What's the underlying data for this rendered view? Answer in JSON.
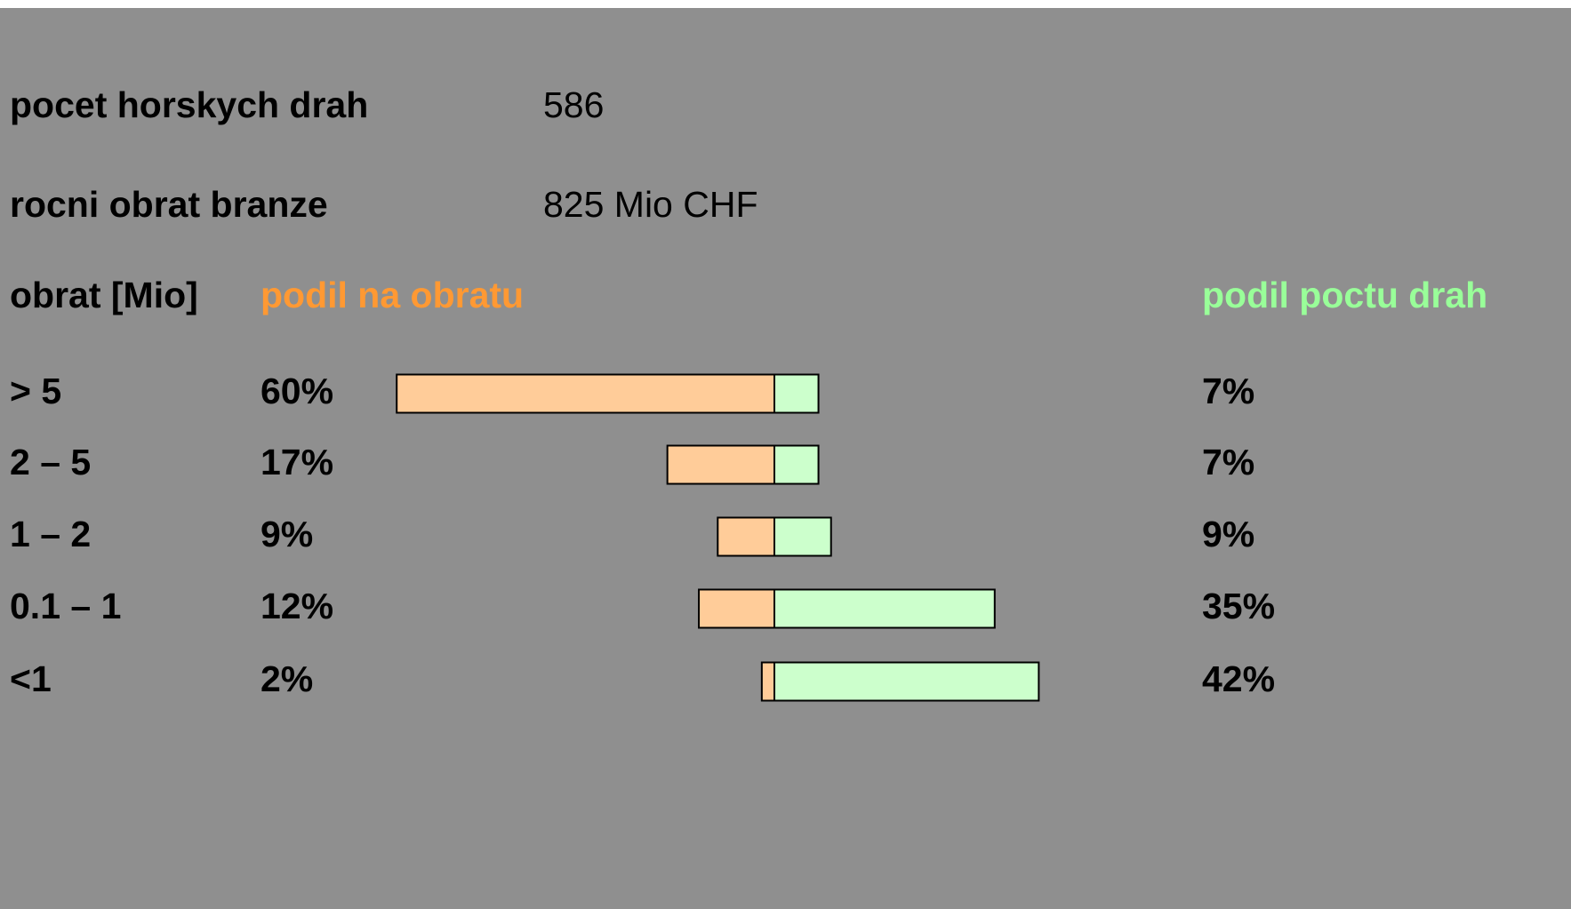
{
  "facts": [
    {
      "label": "pocet horskych drah",
      "value": "586"
    },
    {
      "label": "rocni obrat branze",
      "value": "825 Mio CHF"
    }
  ],
  "chart_data": {
    "type": "butterfly",
    "category_label": "obrat [Mio]",
    "categories": [
      "> 5",
      "2 – 5",
      "1 – 2",
      "0.1 – 1",
      "<1"
    ],
    "series": [
      {
        "name": "podil na obratu",
        "color": "#ffcc99",
        "label_color": "#ff9933",
        "values": [
          60,
          17,
          9,
          12,
          2
        ],
        "value_labels": [
          "60%",
          "17%",
          "9%",
          "12%",
          "2%"
        ]
      },
      {
        "name": "podil poctu drah",
        "color": "#ccffcc",
        "label_color": "#99ff99",
        "values": [
          7,
          7,
          9,
          35,
          42
        ],
        "value_labels": [
          "7%",
          "7%",
          "9%",
          "35%",
          "42%"
        ]
      }
    ]
  }
}
